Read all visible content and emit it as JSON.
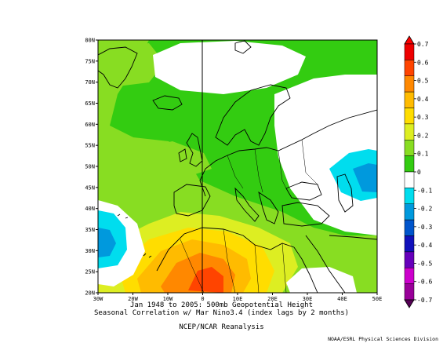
{
  "caption": {
    "line1": "Jan 1948 to 2005: 500mb Geopotential Height",
    "line2": "Seasonal Correlation w/ Mar Nino3.4 (index lags by 2 months)",
    "source": "NCEP/NCAR Reanalysis"
  },
  "credit": "NOAA/ESRL Physical Sciences Division",
  "map": {
    "lon_range": [
      -30,
      50
    ],
    "lat_range": [
      20,
      80
    ],
    "lon_ticks": [
      "30W",
      "20W",
      "10W",
      "0",
      "10E",
      "20E",
      "30E",
      "40E",
      "50E"
    ],
    "lat_ticks": [
      "20N",
      "25N",
      "30N",
      "35N",
      "40N",
      "45N",
      "50N",
      "55N",
      "60N",
      "65N",
      "70N",
      "75N",
      "80N"
    ]
  },
  "colorbar": {
    "labels": [
      "0.7",
      "0.6",
      "0.5",
      "0.4",
      "0.3",
      "0.2",
      "0.1",
      "0",
      "-0.1",
      "-0.2",
      "-0.3",
      "-0.4",
      "-0.5",
      "-0.6",
      "-0.7"
    ],
    "colors": [
      "#ee0000",
      "#ff4400",
      "#ff8800",
      "#ffbb00",
      "#ffdd00",
      "#ddee22",
      "#88dd22",
      "#33cc11",
      "#ffffff",
      "#00ddee",
      "#0099dd",
      "#0055cc",
      "#1111bb",
      "#6600bb",
      "#cc00cc",
      "#990099"
    ],
    "min_color": "#550055",
    "max_color": "#ff0000"
  }
}
